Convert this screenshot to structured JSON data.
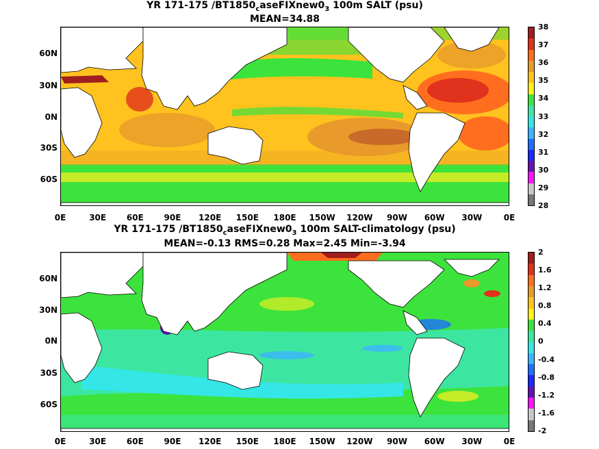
{
  "panel1": {
    "title_line1_pre": "YR 171-175 /BT1850",
    "title_line1_sub1": "c",
    "title_line1_mid": "aseFIXnew0",
    "title_line1_sub2": "3",
    "title_line1_post": " 100m SALT (psu)",
    "title_line2": "MEAN=34.88",
    "colorbar": {
      "labels": [
        "38",
        "37",
        "36",
        "35",
        "34",
        "33",
        "32",
        "31",
        "30",
        "29",
        "28"
      ],
      "colors": [
        "#a01e1e",
        "#e0321c",
        "#ff6e1e",
        "#e89a2a",
        "#ffc21e",
        "#fff01e",
        "#3ce33c",
        "#3ce6a0",
        "#34e6e6",
        "#3cb4ff",
        "#1e6eff",
        "#1e28ff",
        "#6414b4",
        "#ff14ff",
        "#c8c8c8",
        "#787878"
      ]
    }
  },
  "panel2": {
    "title_line1_pre": "YR 171-175 /BT1850",
    "title_line1_sub1": "c",
    "title_line1_mid": "aseFIXnew0",
    "title_line1_sub2": "3",
    "title_line1_post": " 100m SALT-climatology (psu)",
    "title_line2": "MEAN=-0.13   RMS=0.28   Max=2.45   Min=-3.94",
    "colorbar": {
      "labels": [
        "2",
        "1.6",
        "1.2",
        "0.8",
        "0.4",
        "0",
        "-0.4",
        "-0.8",
        "-1.2",
        "-1.6",
        "-2"
      ],
      "colors": [
        "#a01e1e",
        "#e0321c",
        "#ff6e1e",
        "#e89a2a",
        "#ffc21e",
        "#fff01e",
        "#3ce33c",
        "#3ce6a0",
        "#34e6e6",
        "#3cb4ff",
        "#1e6eff",
        "#1e28ff",
        "#6414b4",
        "#ff14ff",
        "#c8c8c8",
        "#787878"
      ]
    }
  },
  "axes": {
    "lat_labels": [
      "60N",
      "30N",
      "0N",
      "30S",
      "60S"
    ],
    "lon_labels": [
      "0E",
      "30E",
      "60E",
      "90E",
      "120E",
      "150E",
      "180E",
      "150W",
      "120W",
      "90W",
      "60W",
      "30W",
      "0E"
    ]
  }
}
